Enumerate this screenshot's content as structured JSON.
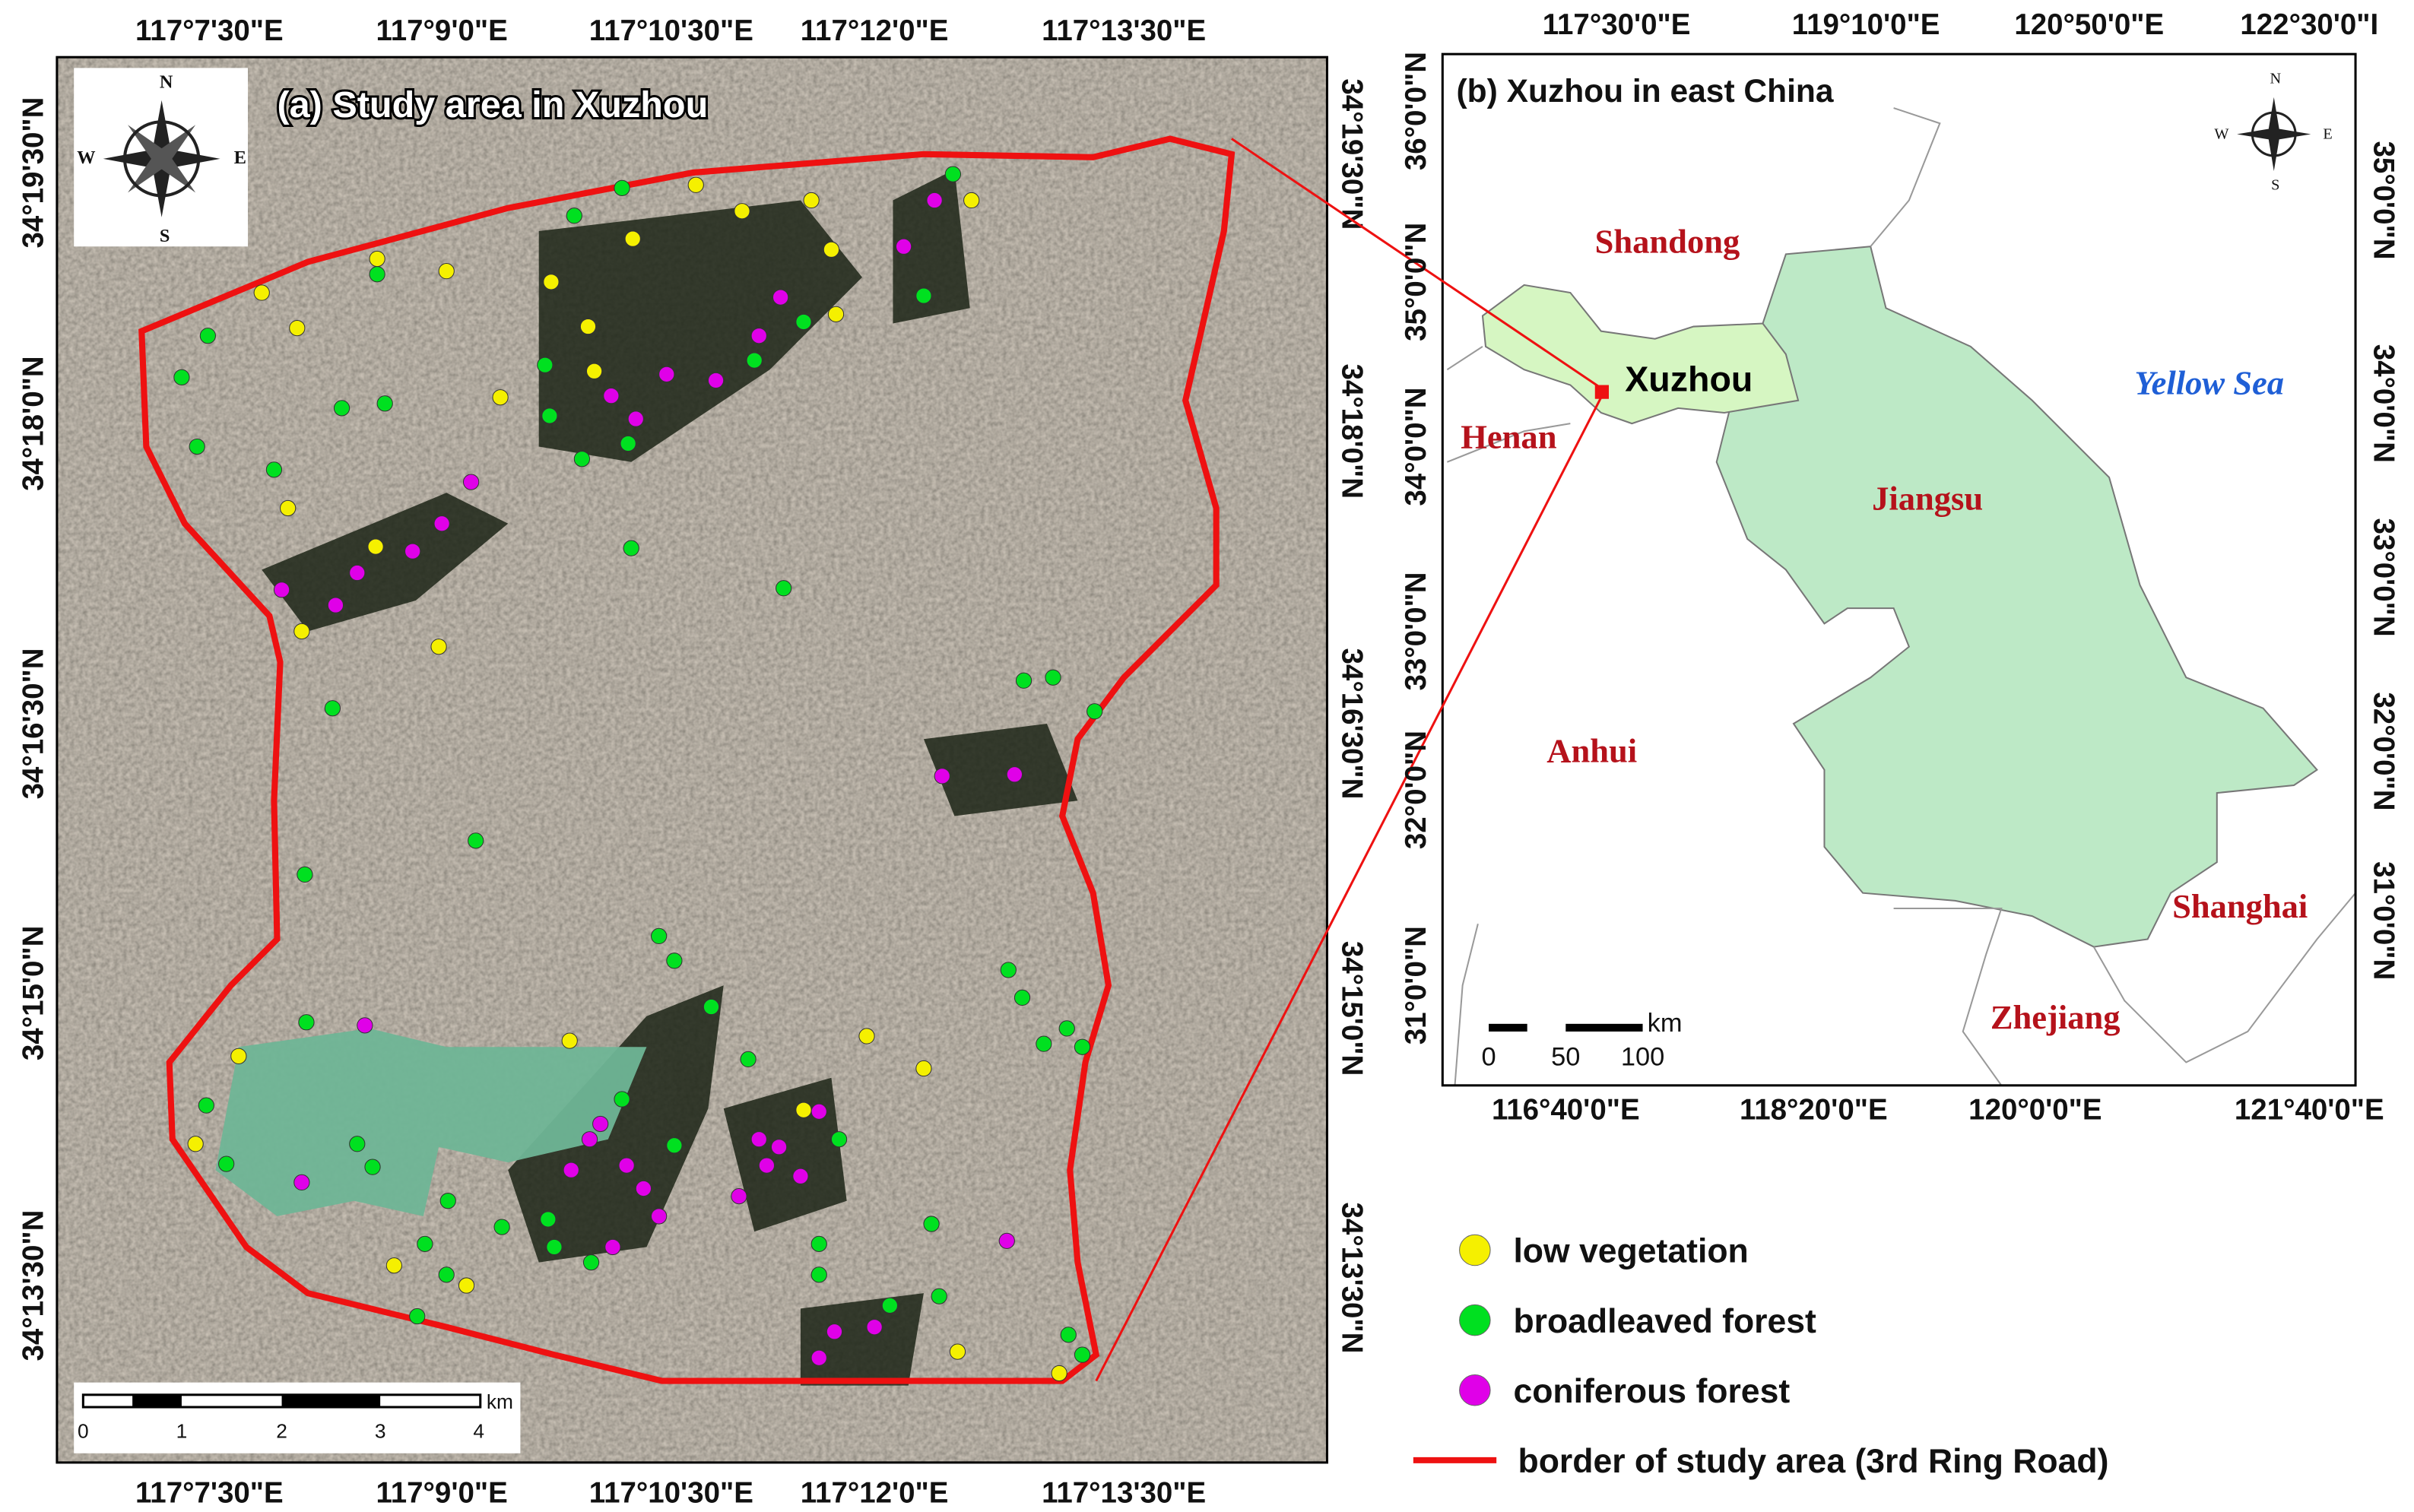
{
  "panel_a": {
    "title": "(a) Study area in Xuzhou",
    "top_lon_labels": [
      "117°7'30\"E",
      "117°9'0\"E",
      "117°10'30\"E",
      "117°12'0\"E",
      "117°13'30\"E"
    ],
    "bottom_lon_labels": [
      "117°7'30\"E",
      "117°9'0\"E",
      "117°10'30\"E",
      "117°12'0\"E",
      "117°13'30\"E"
    ],
    "left_lat_labels": [
      "34°19'30\"N",
      "34°18'0\"N",
      "34°16'30\"N",
      "34°15'0\"N",
      "34°13'30\"N"
    ],
    "right_lat_labels": [
      "34°19'30\"N",
      "34°18'0\"N",
      "34°16'30\"N",
      "34°15'0\"N",
      "34°13'30\"N"
    ],
    "compass": {
      "n": "N",
      "s": "S",
      "w": "W",
      "e": "E"
    },
    "scale_bar": {
      "ticks": [
        "0",
        "1",
        "2",
        "3",
        "4"
      ],
      "unit": "km"
    }
  },
  "panel_b": {
    "title": "(b) Xuzhou in east China",
    "top_lon_labels": [
      "117°30'0\"E",
      "119°10'0\"E",
      "120°50'0\"E",
      "122°30'0\"I"
    ],
    "bottom_lon_labels": [
      "116°40'0\"E",
      "118°20'0\"E",
      "120°0'0\"E",
      "121°40'0\"E"
    ],
    "left_lat_labels": [
      "36°0'0\"N",
      "35°0'0\"N",
      "34°0'0\"N",
      "33°0'0\"N",
      "32°0'0\"N",
      "31°0'0\"N"
    ],
    "right_lat_labels": [
      "35°0'0\"N",
      "34°0'0\"N",
      "33°0'0\"N",
      "32°0'0\"N",
      "31°0'0\"N"
    ],
    "places": {
      "shandong": "Shandong",
      "henan": "Henan",
      "xuzhou": "Xuzhou",
      "jiangsu": "Jiangsu",
      "anhui": "Anhui",
      "yellow_sea": "Yellow Sea",
      "shanghai": "Shanghai",
      "zhejiang": "Zhejiang"
    },
    "compass": {
      "n": "N",
      "s": "S",
      "w": "W",
      "e": "E"
    },
    "scale_bar": {
      "ticks": [
        "0",
        "50",
        "100"
      ],
      "unit": "km"
    }
  },
  "legend": [
    {
      "label": "low vegetation",
      "color": "#f5f000"
    },
    {
      "label": "broadleaved forest",
      "color": "#00e020"
    },
    {
      "label": "coniferous forest",
      "color": "#e000e8"
    },
    {
      "label": "border of study area (3rd Ring Road)",
      "color": "#ee1111"
    }
  ]
}
